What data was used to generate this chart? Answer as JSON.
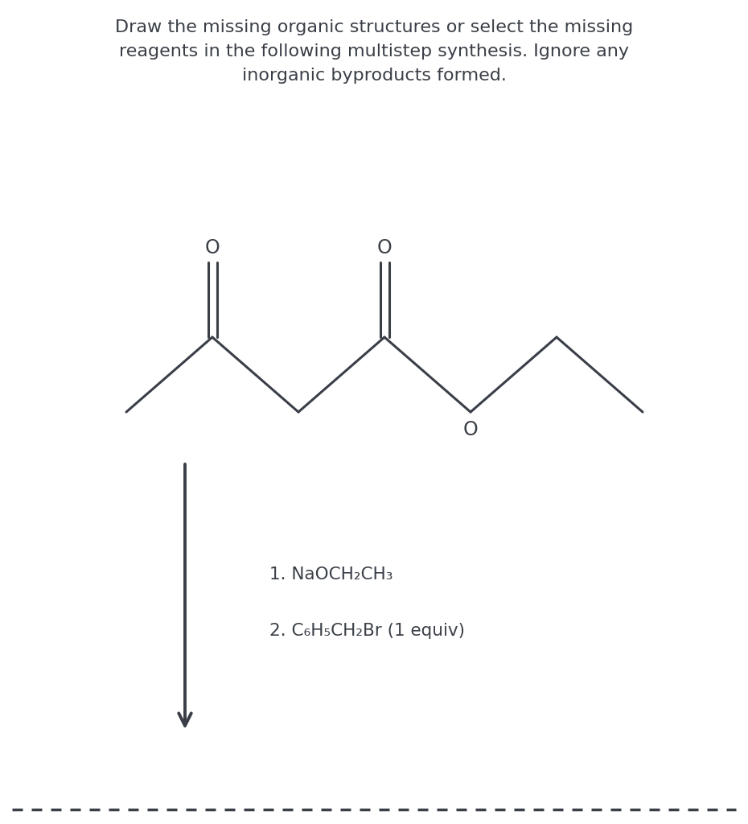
{
  "title_line1": "Draw the missing organic structures or select the missing",
  "title_line2": "reagents in the following multistep synthesis. Ignore any",
  "title_line3": "inorganic byproducts formed.",
  "title_fontsize": 16,
  "line_color": "#3a3f47",
  "bg_color": "#ffffff",
  "reagent1": "1. NaOCH₂CH₃",
  "reagent2": "2. C₆H₅CH₂Br (1 equiv)",
  "reagent_fontsize": 15.5
}
